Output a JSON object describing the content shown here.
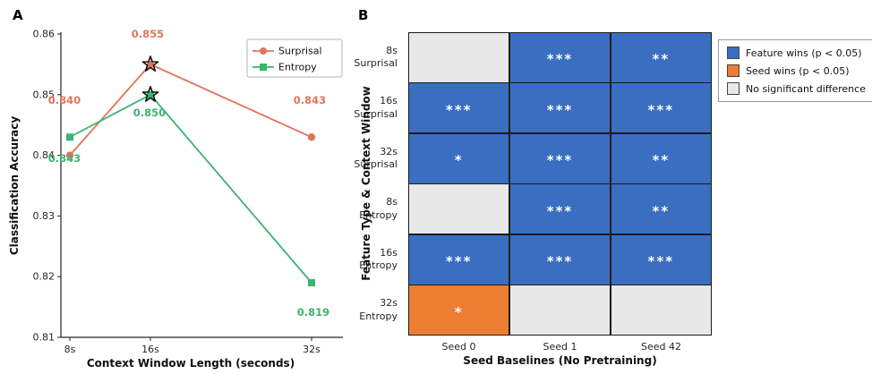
{
  "colors": {
    "surprisal": "#e0745c",
    "entropy": "#3cb371",
    "feature_win": "#3a6ec1",
    "seed_win": "#ec7e31",
    "no_diff": "#e8e8e8",
    "axis": "#262626"
  },
  "panel_a": {
    "label": "A",
    "chart_data": {
      "type": "line",
      "x": [
        8,
        16,
        32
      ],
      "x_tick_labels": [
        "8s",
        "16s",
        "32s"
      ],
      "series": [
        {
          "name": "Surprisal",
          "values": [
            0.84,
            0.855,
            0.843
          ],
          "color": "#e0745c",
          "marker": "circle"
        },
        {
          "name": "Entropy",
          "values": [
            0.843,
            0.85,
            0.819
          ],
          "color": "#3cb371",
          "marker": "square"
        }
      ],
      "data_labels": {
        "Surprisal": [
          "0.840",
          "0.855",
          "0.843"
        ],
        "Entropy": [
          "0.843",
          "0.850",
          "0.819"
        ]
      },
      "star_annotations": [
        {
          "series": "Surprisal",
          "x": 16
        },
        {
          "series": "Entropy",
          "x": 16
        }
      ],
      "xlabel": "Context Window Length (seconds)",
      "ylabel": "Classification Accuracy",
      "ylim": [
        0.81,
        0.86
      ],
      "yticks": [
        0.81,
        0.82,
        0.83,
        0.84,
        0.85,
        0.86
      ],
      "legend": [
        "Surprisal",
        "Entropy"
      ],
      "legend_position": "top-right"
    }
  },
  "panel_b": {
    "label": "B",
    "chart_data": {
      "type": "heatmap",
      "columns": [
        "Seed 0",
        "Seed 1",
        "Seed 42"
      ],
      "rows": [
        {
          "label_top": "8s",
          "label_bottom": "Surprisal",
          "cells": [
            {
              "state": "none",
              "text": ""
            },
            {
              "state": "feature",
              "text": "***"
            },
            {
              "state": "feature",
              "text": "**"
            }
          ]
        },
        {
          "label_top": "16s",
          "label_bottom": "Surprisal",
          "cells": [
            {
              "state": "feature",
              "text": "***"
            },
            {
              "state": "feature",
              "text": "***"
            },
            {
              "state": "feature",
              "text": "***"
            }
          ]
        },
        {
          "label_top": "32s",
          "label_bottom": "Surprisal",
          "cells": [
            {
              "state": "feature",
              "text": "*"
            },
            {
              "state": "feature",
              "text": "***"
            },
            {
              "state": "feature",
              "text": "**"
            }
          ]
        },
        {
          "label_top": "8s",
          "label_bottom": "Entropy",
          "cells": [
            {
              "state": "none",
              "text": ""
            },
            {
              "state": "feature",
              "text": "***"
            },
            {
              "state": "feature",
              "text": "**"
            }
          ]
        },
        {
          "label_top": "16s",
          "label_bottom": "Entropy",
          "cells": [
            {
              "state": "feature",
              "text": "***"
            },
            {
              "state": "feature",
              "text": "***"
            },
            {
              "state": "feature",
              "text": "***"
            }
          ]
        },
        {
          "label_top": "32s",
          "label_bottom": "Entropy",
          "cells": [
            {
              "state": "seed",
              "text": "*"
            },
            {
              "state": "none",
              "text": ""
            },
            {
              "state": "none",
              "text": ""
            }
          ]
        }
      ],
      "xlabel": "Seed Baselines (No Pretraining)",
      "ylabel": "Feature Type & Context Window",
      "legend": [
        {
          "label": "Feature wins (p < 0.05)",
          "color_key": "feature_win"
        },
        {
          "label": "Seed wins (p < 0.05)",
          "color_key": "seed_win"
        },
        {
          "label": "No significant difference",
          "color_key": "no_diff"
        }
      ],
      "legend_position": "top-right-outside"
    }
  }
}
